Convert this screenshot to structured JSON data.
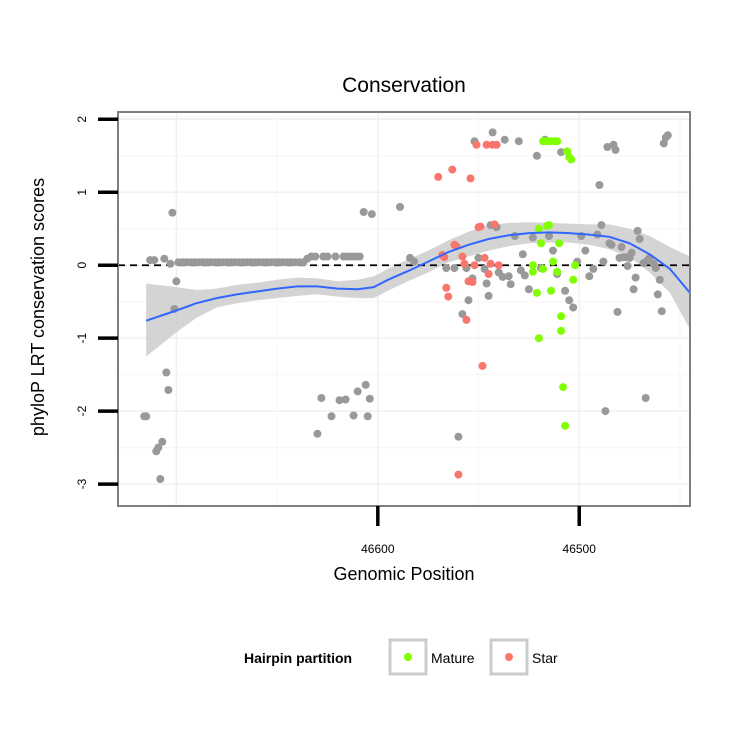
{
  "chart_data": {
    "type": "scatter",
    "title": "Conservation",
    "xlabel": "Genomic Position",
    "ylabel": "phyloP LRT conservation scores",
    "x_reversed": true,
    "xlim": [
      46729,
      46445
    ],
    "ylim": [
      -3.3,
      2.1
    ],
    "x_ticks": [
      46600,
      46500
    ],
    "y_ticks": [
      -3,
      -2,
      -1,
      0,
      1,
      2
    ],
    "y_tick_labels": [
      "-3",
      "-2",
      "-1",
      "0",
      "1",
      "2"
    ],
    "x_tick_labels": [
      "46600",
      "46500"
    ],
    "grid": true,
    "reference_line": {
      "y": 0,
      "style": "dashed"
    },
    "colors": {
      "Other": "#999999",
      "Mature": "#7FFF00",
      "Star": "#F8766D",
      "smooth": "#3366FF",
      "band": "#cccccc"
    },
    "legend": {
      "title": "Hairpin partition",
      "position": "bottom",
      "entries": [
        {
          "name": "Mature",
          "color": "#7FFF00"
        },
        {
          "name": "Star",
          "color": "#F8766D"
        }
      ]
    },
    "series": [
      {
        "name": "Other",
        "points": [
          [
            46716,
            -2.07
          ],
          [
            46715,
            -2.07
          ],
          [
            46713,
            0.07
          ],
          [
            46711,
            0.07
          ],
          [
            46710,
            -2.55
          ],
          [
            46709,
            -2.5
          ],
          [
            46708,
            -2.93
          ],
          [
            46707,
            -2.42
          ],
          [
            46706,
            0.09
          ],
          [
            46705,
            -1.47
          ],
          [
            46704,
            -1.71
          ],
          [
            46703,
            0.02
          ],
          [
            46702,
            0.72
          ],
          [
            46701,
            -0.6
          ],
          [
            46700,
            -0.22
          ],
          [
            46699,
            0.04
          ],
          [
            46697,
            0.04
          ],
          [
            46695,
            0.04
          ],
          [
            46693,
            0.04
          ],
          [
            46691,
            0.04
          ],
          [
            46689,
            0.04
          ],
          [
            46687,
            0.04
          ],
          [
            46685,
            0.04
          ],
          [
            46683,
            0.04
          ],
          [
            46681,
            0.04
          ],
          [
            46679,
            0.04
          ],
          [
            46677,
            0.04
          ],
          [
            46675,
            0.04
          ],
          [
            46673,
            0.04
          ],
          [
            46671,
            0.04
          ],
          [
            46669,
            0.04
          ],
          [
            46667,
            0.04
          ],
          [
            46665,
            0.04
          ],
          [
            46663,
            0.04
          ],
          [
            46661,
            0.04
          ],
          [
            46659,
            0.04
          ],
          [
            46657,
            0.04
          ],
          [
            46655,
            0.04
          ],
          [
            46653,
            0.04
          ],
          [
            46651,
            0.04
          ],
          [
            46649,
            0.04
          ],
          [
            46647,
            0.04
          ],
          [
            46645,
            0.04
          ],
          [
            46643,
            0.04
          ],
          [
            46641,
            0.04
          ],
          [
            46639,
            0.04
          ],
          [
            46637,
            0.04
          ],
          [
            46635,
            0.09
          ],
          [
            46633,
            0.12
          ],
          [
            46631,
            0.12
          ],
          [
            46630,
            -2.31
          ],
          [
            46628,
            -1.82
          ],
          [
            46627,
            0.12
          ],
          [
            46625,
            0.12
          ],
          [
            46623,
            -2.07
          ],
          [
            46621,
            0.12
          ],
          [
            46619,
            -1.85
          ],
          [
            46617,
            0.12
          ],
          [
            46616,
            -1.84
          ],
          [
            46615,
            0.12
          ],
          [
            46613,
            0.12
          ],
          [
            46612,
            -2.06
          ],
          [
            46611,
            0.12
          ],
          [
            46610,
            -1.73
          ],
          [
            46609,
            0.12
          ],
          [
            46607,
            0.73
          ],
          [
            46606,
            -1.64
          ],
          [
            46605,
            -2.07
          ],
          [
            46604,
            -1.83
          ],
          [
            46603,
            0.7
          ],
          [
            46589,
            0.8
          ],
          [
            46584,
            0.1
          ],
          [
            46582,
            0.05
          ],
          [
            46566,
            -0.04
          ],
          [
            46562,
            -0.04
          ],
          [
            46560,
            -2.35
          ],
          [
            46558,
            -0.67
          ],
          [
            46556,
            -0.04
          ],
          [
            46555,
            -0.48
          ],
          [
            46553,
            -0.18
          ],
          [
            46552,
            1.7
          ],
          [
            46550,
            0.1
          ],
          [
            46547,
            -0.05
          ],
          [
            46546,
            -0.25
          ],
          [
            46545,
            -0.42
          ],
          [
            46544,
            0.55
          ],
          [
            46543,
            1.82
          ],
          [
            46541,
            0.52
          ],
          [
            46540,
            -0.1
          ],
          [
            46538,
            -0.16
          ],
          [
            46537,
            1.72
          ],
          [
            46535,
            -0.15
          ],
          [
            46534,
            -0.26
          ],
          [
            46532,
            0.4
          ],
          [
            46530,
            1.7
          ],
          [
            46529,
            -0.07
          ],
          [
            46528,
            0.15
          ],
          [
            46527,
            -0.14
          ],
          [
            46525,
            -0.33
          ],
          [
            46523,
            0.38
          ],
          [
            46521,
            1.5
          ],
          [
            46519,
            -0.04
          ],
          [
            46517,
            1.72
          ],
          [
            46515,
            0.4
          ],
          [
            46513,
            0.2
          ],
          [
            46511,
            -0.12
          ],
          [
            46509,
            1.55
          ],
          [
            46507,
            -0.35
          ],
          [
            46505,
            -0.48
          ],
          [
            46503,
            -0.58
          ],
          [
            46501,
            0.05
          ],
          [
            46499,
            0.4
          ],
          [
            46497,
            0.2
          ],
          [
            46495,
            -0.15
          ],
          [
            46493,
            -0.05
          ],
          [
            46491,
            0.42
          ],
          [
            46490,
            1.1
          ],
          [
            46489,
            0.55
          ],
          [
            46488,
            0.05
          ],
          [
            46487,
            -2.0
          ],
          [
            46486,
            1.62
          ],
          [
            46485,
            0.3
          ],
          [
            46484,
            0.28
          ],
          [
            46483,
            1.65
          ],
          [
            46482,
            1.58
          ],
          [
            46481,
            -0.64
          ],
          [
            46480,
            0.1
          ],
          [
            46479,
            0.25
          ],
          [
            46478,
            0.11
          ],
          [
            46477,
            0.11
          ],
          [
            46476,
            -0.01
          ],
          [
            46475,
            0.1
          ],
          [
            46474,
            0.17
          ],
          [
            46473,
            -0.33
          ],
          [
            46472,
            -0.17
          ],
          [
            46471,
            0.47
          ],
          [
            46470,
            0.36
          ],
          [
            46468,
            0.03
          ],
          [
            46467,
            -1.82
          ],
          [
            46466,
            0.07
          ],
          [
            46465,
            0.1
          ],
          [
            46463,
            0.02
          ],
          [
            46462,
            -0.04
          ],
          [
            46461,
            -0.4
          ],
          [
            46460,
            -0.2
          ],
          [
            46459,
            -0.63
          ],
          [
            46458,
            1.67
          ],
          [
            46457,
            1.75
          ],
          [
            46456,
            1.78
          ]
        ]
      },
      {
        "name": "Mature",
        "points": [
          [
            46518,
            1.7
          ],
          [
            46517,
            1.7
          ],
          [
            46515,
            1.7
          ],
          [
            46514,
            1.7
          ],
          [
            46512,
            1.7
          ],
          [
            46511,
            1.7
          ],
          [
            46520,
            0.5
          ],
          [
            46519,
            0.3
          ],
          [
            46518,
            -0.05
          ],
          [
            46516,
            0.54
          ],
          [
            46515,
            0.55
          ],
          [
            46513,
            0.05
          ],
          [
            46511,
            -0.09
          ],
          [
            46510,
            0.3
          ],
          [
            46509,
            -0.9
          ],
          [
            46508,
            -1.67
          ],
          [
            46507,
            -2.2
          ],
          [
            46506,
            1.56
          ],
          [
            46505,
            1.48
          ],
          [
            46504,
            1.45
          ],
          [
            46503,
            -0.2
          ],
          [
            46502,
            0.0
          ],
          [
            46523,
            0.0
          ],
          [
            46523,
            -0.09
          ],
          [
            46521,
            -0.38
          ],
          [
            46520,
            -1.0
          ],
          [
            46514,
            -0.35
          ],
          [
            46509,
            -0.7
          ]
        ]
      },
      {
        "name": "Star",
        "points": [
          [
            46570,
            1.21
          ],
          [
            46568,
            0.14
          ],
          [
            46567,
            0.11
          ],
          [
            46566,
            -0.31
          ],
          [
            46565,
            -0.43
          ],
          [
            46563,
            1.31
          ],
          [
            46562,
            0.28
          ],
          [
            46561,
            0.26
          ],
          [
            46560,
            -2.87
          ],
          [
            46558,
            0.12
          ],
          [
            46557,
            0.02
          ],
          [
            46556,
            -0.75
          ],
          [
            46555,
            -0.22
          ],
          [
            46554,
            1.19
          ],
          [
            46553,
            -0.23
          ],
          [
            46552,
            0.0
          ],
          [
            46551,
            1.65
          ],
          [
            46550,
            0.52
          ],
          [
            46549,
            0.53
          ],
          [
            46548,
            -1.38
          ],
          [
            46547,
            0.1
          ],
          [
            46546,
            1.65
          ],
          [
            46545,
            -0.12
          ],
          [
            46544,
            0.02
          ],
          [
            46543,
            1.65
          ],
          [
            46542,
            0.56
          ],
          [
            46541,
            1.65
          ],
          [
            46540,
            0.0
          ]
        ]
      }
    ],
    "smooth": [
      [
        46715,
        -0.76
      ],
      [
        46700,
        -0.62
      ],
      [
        46690,
        -0.52
      ],
      [
        46680,
        -0.45
      ],
      [
        46670,
        -0.4
      ],
      [
        46660,
        -0.36
      ],
      [
        46650,
        -0.32
      ],
      [
        46640,
        -0.29
      ],
      [
        46630,
        -0.29
      ],
      [
        46620,
        -0.32
      ],
      [
        46610,
        -0.33
      ],
      [
        46602,
        -0.3
      ],
      [
        46595,
        -0.2
      ],
      [
        46585,
        -0.08
      ],
      [
        46575,
        0.05
      ],
      [
        46565,
        0.18
      ],
      [
        46555,
        0.28
      ],
      [
        46545,
        0.36
      ],
      [
        46535,
        0.41
      ],
      [
        46525,
        0.44
      ],
      [
        46515,
        0.45
      ],
      [
        46505,
        0.44
      ],
      [
        46495,
        0.42
      ],
      [
        46485,
        0.39
      ],
      [
        46475,
        0.3
      ],
      [
        46465,
        0.15
      ],
      [
        46455,
        -0.05
      ],
      [
        46445,
        -0.38
      ]
    ],
    "band_upper": [
      [
        46715,
        -0.25
      ],
      [
        46700,
        -0.3
      ],
      [
        46690,
        -0.34
      ],
      [
        46680,
        -0.32
      ],
      [
        46670,
        -0.27
      ],
      [
        46660,
        -0.24
      ],
      [
        46650,
        -0.2
      ],
      [
        46640,
        -0.17
      ],
      [
        46630,
        -0.18
      ],
      [
        46620,
        -0.22
      ],
      [
        46610,
        -0.2
      ],
      [
        46602,
        -0.15
      ],
      [
        46595,
        -0.05
      ],
      [
        46585,
        0.08
      ],
      [
        46575,
        0.2
      ],
      [
        46565,
        0.34
      ],
      [
        46555,
        0.46
      ],
      [
        46545,
        0.55
      ],
      [
        46535,
        0.58
      ],
      [
        46525,
        0.59
      ],
      [
        46515,
        0.58
      ],
      [
        46505,
        0.57
      ],
      [
        46495,
        0.56
      ],
      [
        46485,
        0.56
      ],
      [
        46475,
        0.5
      ],
      [
        46465,
        0.4
      ],
      [
        46455,
        0.25
      ],
      [
        46445,
        0.12
      ]
    ],
    "band_lower": [
      [
        46715,
        -1.25
      ],
      [
        46700,
        -0.92
      ],
      [
        46690,
        -0.72
      ],
      [
        46680,
        -0.58
      ],
      [
        46670,
        -0.52
      ],
      [
        46660,
        -0.48
      ],
      [
        46650,
        -0.45
      ],
      [
        46640,
        -0.42
      ],
      [
        46630,
        -0.4
      ],
      [
        46620,
        -0.43
      ],
      [
        46610,
        -0.45
      ],
      [
        46602,
        -0.45
      ],
      [
        46595,
        -0.35
      ],
      [
        46585,
        -0.22
      ],
      [
        46575,
        -0.1
      ],
      [
        46565,
        0.04
      ],
      [
        46555,
        0.12
      ],
      [
        46545,
        0.2
      ],
      [
        46535,
        0.26
      ],
      [
        46525,
        0.3
      ],
      [
        46515,
        0.31
      ],
      [
        46505,
        0.31
      ],
      [
        46495,
        0.28
      ],
      [
        46485,
        0.22
      ],
      [
        46475,
        0.11
      ],
      [
        46465,
        -0.1
      ],
      [
        46455,
        -0.38
      ],
      [
        46445,
        -0.88
      ]
    ]
  }
}
